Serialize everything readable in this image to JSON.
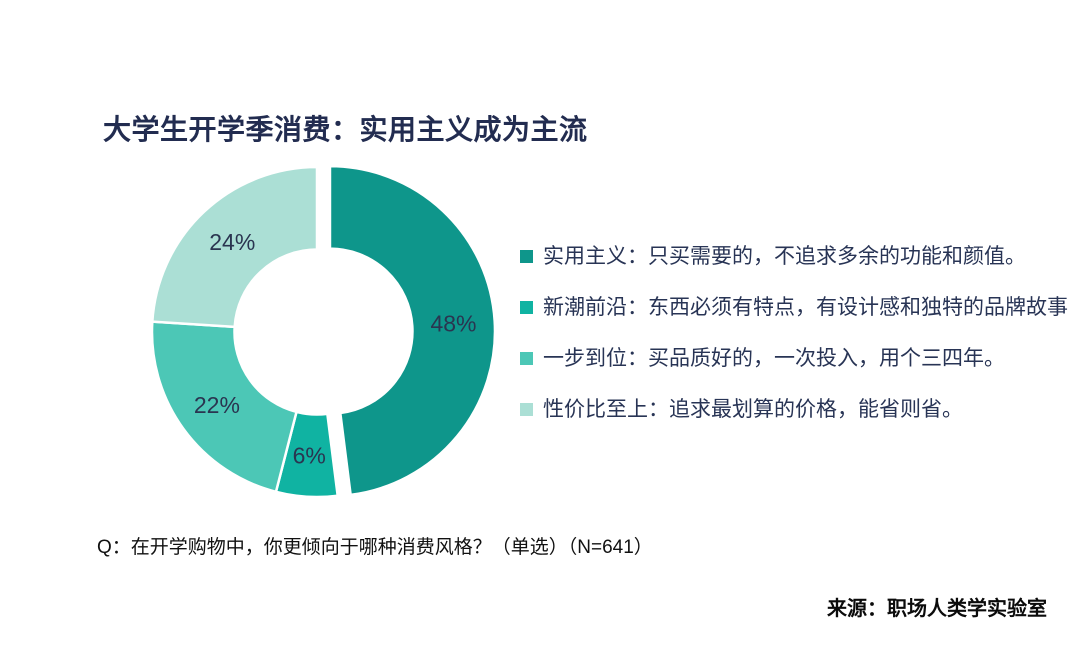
{
  "chart_data": {
    "type": "pie",
    "subtype": "donut",
    "title": "大学生开学季消费：实用主义成为主流",
    "categories": [
      "实用主义",
      "新潮前沿",
      "一步到位",
      "性价比至上"
    ],
    "values": [
      48,
      6,
      22,
      24
    ],
    "slice_labels": [
      "48%",
      "6%",
      "22%",
      "24%"
    ],
    "colors": [
      "#0e968b",
      "#10b3a2",
      "#4cc7b6",
      "#abdfd5"
    ],
    "start_angle_deg": 0,
    "direction": "clockwise",
    "donut_hole_ratio": 0.5,
    "exploded_slice_index": 0,
    "gridlines": false,
    "legend_position": "right"
  },
  "legend": {
    "items": [
      {
        "label": "实用主义",
        "text": "实用主义：只买需要的，不追求多余的功能和颜值。"
      },
      {
        "label": "新潮前沿",
        "text": "新潮前沿：东西必须有特点，有设计感和独特的品牌故事"
      },
      {
        "label": "一步到位",
        "text": "一步到位：买品质好的，一次投入，用个三四年。"
      },
      {
        "label": "性价比至上",
        "text": "性价比至上：追求最划算的价格，能省则省。"
      }
    ]
  },
  "footnote": {
    "question": "Q：在开学购物中，你更倾向于哪种消费风格？（单选）（N=641）"
  },
  "source": {
    "text": "来源：职场人类学实验室"
  },
  "colors": {
    "title_text": "#222c50",
    "slice_label_text": "#2a3550",
    "legend_text": "#283455",
    "footnote_text": "#111111",
    "source_text": "#0b0b0b",
    "background": "#ffffff"
  }
}
